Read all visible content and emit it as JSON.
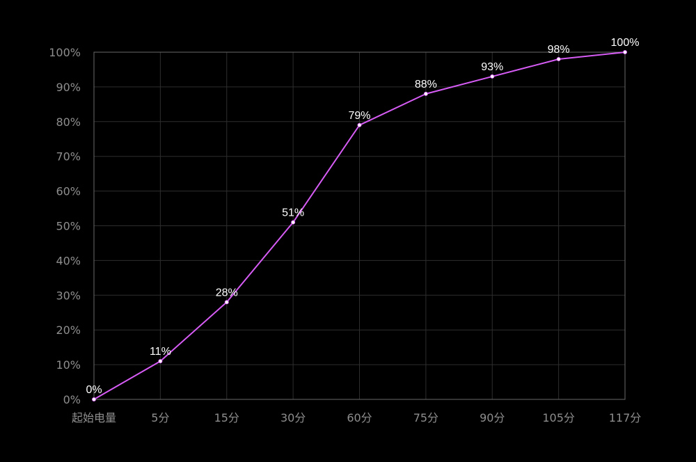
{
  "chart_data": {
    "type": "line",
    "categories": [
      "起始电量",
      "5分",
      "15分",
      "30分",
      "60分",
      "75分",
      "90分",
      "105分",
      "117分"
    ],
    "series": [
      {
        "values": [
          0,
          11,
          28,
          51,
          79,
          88,
          93,
          98,
          100
        ],
        "data_labels": [
          "0%",
          "11%",
          "28%",
          "51%",
          "79%",
          "88%",
          "93%",
          "98%",
          "100%"
        ]
      }
    ],
    "y_ticks": [
      "0%",
      "10%",
      "20%",
      "30%",
      "40%",
      "50%",
      "60%",
      "70%",
      "80%",
      "90%",
      "100%"
    ],
    "ylim": [
      0,
      100
    ],
    "grid": true,
    "legend": "none",
    "title": "",
    "xlabel": "",
    "ylabel": ""
  },
  "colors": {
    "background": "#000000",
    "line": "#d65cf5",
    "point": "#ffffff",
    "grid": "#2e2e2e",
    "axis": "#6a6a6a",
    "tick_text": "#8e8e8e",
    "label_text": "#ffffff"
  }
}
